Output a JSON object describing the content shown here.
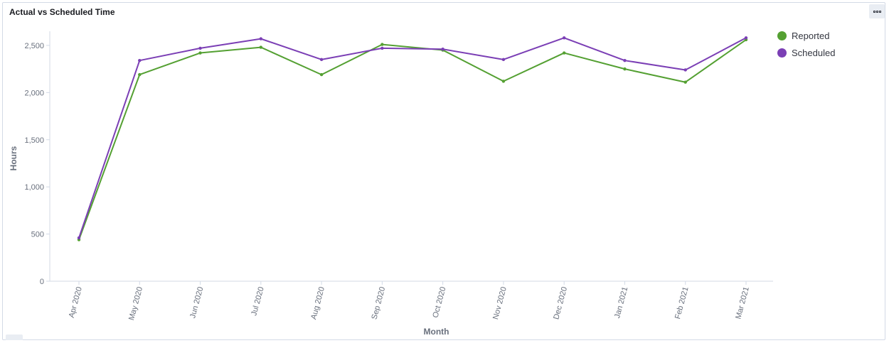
{
  "panel": {
    "title": "Actual vs Scheduled Time"
  },
  "chart_data": {
    "type": "line",
    "xlabel": "Month",
    "ylabel": "Hours",
    "categories": [
      "Apr 2020",
      "May 2020",
      "Jun 2020",
      "Jul 2020",
      "Aug 2020",
      "Sep 2020",
      "Oct 2020",
      "Nov 2020",
      "Dec 2020",
      "Jan 2021",
      "Feb 2021",
      "Mar 2021"
    ],
    "ylim": [
      0,
      2650
    ],
    "yticks": [
      0,
      500,
      1000,
      1500,
      2000,
      2500
    ],
    "ytick_labels": [
      "0",
      "500",
      "1,000",
      "1,500",
      "2,000",
      "2,500"
    ],
    "grid": false,
    "legend_position": "top-right",
    "series": [
      {
        "name": "Reported",
        "color": "#54a032",
        "values": [
          440,
          2190,
          2420,
          2480,
          2190,
          2510,
          2450,
          2120,
          2420,
          2250,
          2110,
          2560
        ]
      },
      {
        "name": "Scheduled",
        "color": "#7b3fb5",
        "values": [
          460,
          2340,
          2470,
          2570,
          2350,
          2470,
          2460,
          2350,
          2580,
          2340,
          2240,
          2580
        ]
      }
    ]
  }
}
